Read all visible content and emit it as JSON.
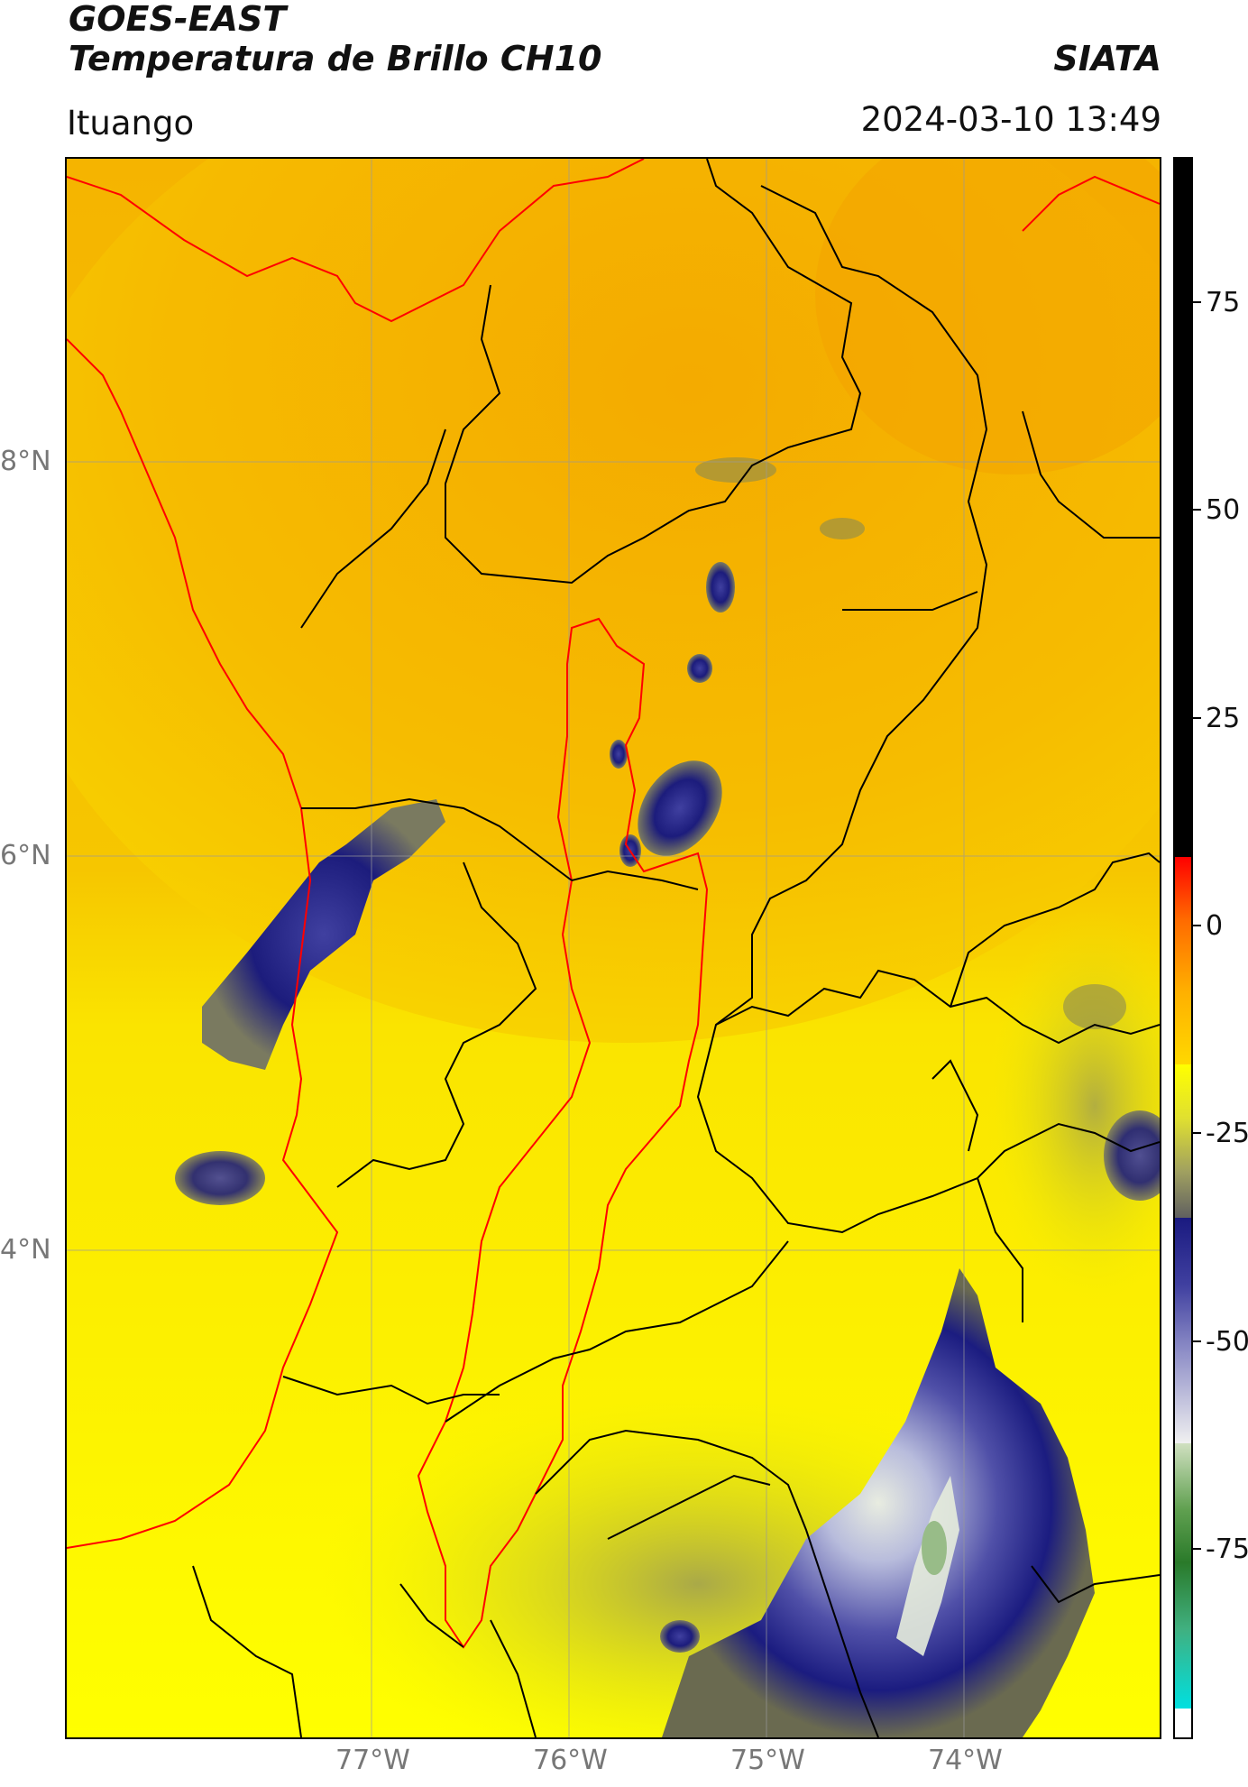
{
  "header": {
    "title_line1": "GOES-EAST",
    "title_line2": "Temperatura de Brillo CH10",
    "source": "SIATA",
    "location": "Ituango",
    "datetime": "2024-03-10 13:49"
  },
  "map": {
    "lat_labels": [
      "8°N",
      "6°N",
      "4°N"
    ],
    "lon_labels": [
      "77°W",
      "76°W",
      "75°W",
      "74°W"
    ],
    "colors": {
      "background_warm": "#f5b000",
      "background_mid": "#f8d800",
      "background_cold": "#ffff00",
      "cloud_dark": "#1a1a80",
      "cloud_mid": "#5a5ab0",
      "cloud_light": "#dcdcec",
      "cloud_green": "#9ac090",
      "gray_transition": "#b0b040",
      "boundary_black": "#000000",
      "boundary_red": "#ff0000",
      "gridline": "#999999"
    }
  },
  "colorbar": {
    "ticks": [
      "75",
      "50",
      "25",
      "0",
      "-25",
      "-50",
      "-75"
    ]
  }
}
